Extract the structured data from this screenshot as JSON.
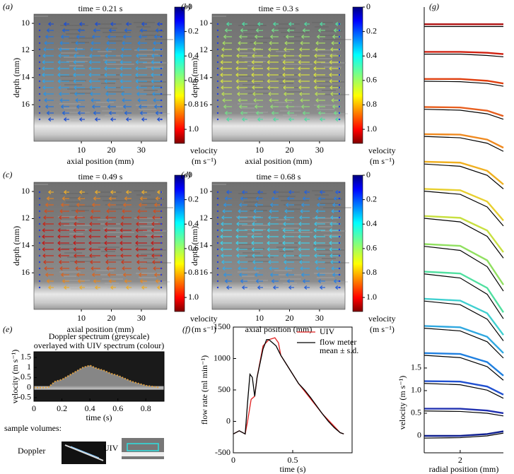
{
  "figure": {
    "vector_panels": [
      {
        "label": "(a)",
        "title": "time = 0.21 s",
        "arrow_colors": [
          "#1840d0",
          "#30a8e8"
        ]
      },
      {
        "label": "(b)",
        "title": "time = 0.3 s",
        "arrow_colors": [
          "#40d8b0",
          "#d8e040"
        ]
      },
      {
        "label": "(c)",
        "title": "time = 0.49 s",
        "arrow_colors": [
          "#f0c030",
          "#c01818"
        ]
      },
      {
        "label": "(d)",
        "title": "time = 0.68 s",
        "arrow_colors": [
          "#2050d8",
          "#40d0e8"
        ]
      }
    ],
    "vector_axes": {
      "xlabel": "axial position (mm)",
      "ylabel": "depth (mm)",
      "xlim": [
        -5.8,
        38.5
      ],
      "ylim": [
        9.32,
        18.7
      ],
      "xticks": [
        10,
        20,
        30
      ],
      "yticks": [
        10,
        12,
        14,
        16
      ],
      "colorbar": {
        "label": "velocity",
        "unit": "(m s⁻¹)",
        "clim": [
          0,
          1.115
        ],
        "ticks": [
          0,
          0.2,
          0.4,
          0.6,
          0.8,
          {
            "value": 1,
            "label": "1.0"
          }
        ]
      }
    },
    "panel_e": {
      "label": "(e)",
      "title_lines": [
        "Doppler spectrum (greyscale)",
        "overlayed with UIV spectrum (colour)"
      ],
      "xlabel": "time (s)",
      "ylabel": "velocity (m s⁻¹)",
      "xlim": [
        0,
        0.93
      ],
      "ylim": [
        -0.68,
        1.78
      ],
      "xticks": [
        0,
        0.2,
        0.4,
        0.6,
        0.8
      ],
      "yticks": [
        -0.5,
        0,
        0.5,
        1,
        1.5
      ],
      "x": [
        0,
        0.1,
        0.15,
        0.2,
        0.25,
        0.3,
        0.35,
        0.4,
        0.45,
        0.5,
        0.55,
        0.6,
        0.65,
        0.7,
        0.75,
        0.8,
        0.85,
        0.9
      ],
      "values": [
        0,
        0,
        0.3,
        0.4,
        0.6,
        0.8,
        1.0,
        1.1,
        0.95,
        0.85,
        0.7,
        0.6,
        0.45,
        0.3,
        0.2,
        0.1,
        0.05,
        0
      ],
      "color": "#e0a040",
      "sample_title": "sample volumes:",
      "doppler_label": "Doppler",
      "uiv_label": "UIV"
    },
    "panel_f": {
      "label": "(f)",
      "xlabel": "time (s)",
      "ylabel": "flow rate (ml min⁻¹)",
      "xlim": [
        0,
        1
      ],
      "ylim": [
        -500,
        1500
      ],
      "xticks": [
        0,
        0.5
      ],
      "yticks": [
        -500,
        0,
        500,
        1000,
        1500
      ],
      "series": [
        {
          "name": "UIV",
          "color": "#e02020",
          "x": [
            0,
            0.05,
            0.1,
            0.12,
            0.15,
            0.18,
            0.2,
            0.25,
            0.3,
            0.35,
            0.38,
            0.4,
            0.45,
            0.5,
            0.55,
            0.6,
            0.65,
            0.7,
            0.75,
            0.8,
            0.85,
            0.9,
            0.93
          ],
          "values": [
            -200,
            -150,
            -200,
            0,
            350,
            400,
            700,
            1200,
            1300,
            1330,
            1250,
            1050,
            900,
            750,
            600,
            480,
            360,
            240,
            120,
            20,
            -80,
            -180,
            -200
          ]
        },
        {
          "name": "flow meter",
          "note": "mean ± s.d.",
          "color": "#000000",
          "x": [
            0,
            0.05,
            0.1,
            0.12,
            0.14,
            0.16,
            0.18,
            0.2,
            0.25,
            0.28,
            0.3,
            0.33,
            0.36,
            0.4,
            0.45,
            0.5,
            0.55,
            0.6,
            0.65,
            0.7,
            0.75,
            0.8,
            0.85,
            0.9,
            0.93
          ],
          "values": [
            -200,
            -150,
            -200,
            300,
            750,
            700,
            400,
            700,
            1150,
            1300,
            1300,
            1250,
            1200,
            1050,
            900,
            750,
            600,
            500,
            380,
            250,
            120,
            0,
            -100,
            -180,
            -200
          ]
        }
      ]
    },
    "panel_g": {
      "label": "(g)",
      "xlabel": "radial position (mm)",
      "ylabel": "velocity (m s⁻¹)",
      "xlim": [
        0,
        4.4
      ],
      "ylim": [
        -0.375,
        9.48
      ],
      "xticks": [
        2
      ],
      "yticks": [
        0,
        0.5,
        {
          "value": 1,
          "label": "1.0"
        },
        1.5
      ],
      "radial": [
        0,
        2,
        3.5,
        4.4
      ],
      "reference_color": "#000000",
      "profiles": [
        {
          "color": "#b01010",
          "uiv": [
            9.1,
            9.1,
            9.1,
            9.1
          ],
          "reference": [
            9.05,
            9.05,
            9.05,
            9.05
          ]
        },
        {
          "color": "#d02010",
          "uiv": [
            8.49,
            8.49,
            8.47,
            8.44
          ],
          "reference": [
            8.44,
            8.44,
            8.41,
            8.38
          ]
        },
        {
          "color": "#e04010",
          "uiv": [
            7.89,
            7.89,
            7.85,
            7.79
          ],
          "reference": [
            7.84,
            7.83,
            7.79,
            7.73
          ]
        },
        {
          "color": "#e86020",
          "uiv": [
            7.27,
            7.26,
            7.19,
            7.07
          ],
          "reference": [
            7.22,
            7.2,
            7.12,
            7.0
          ]
        },
        {
          "color": "#f08a20",
          "uiv": [
            6.67,
            6.66,
            6.55,
            6.37
          ],
          "reference": [
            6.62,
            6.59,
            6.47,
            6.29
          ]
        },
        {
          "color": "#f0b020",
          "uiv": [
            6.06,
            6.04,
            5.86,
            5.56
          ],
          "reference": [
            6.01,
            5.96,
            5.76,
            5.46
          ]
        },
        {
          "color": "#e8d030",
          "uiv": [
            5.46,
            5.43,
            5.18,
            4.76
          ],
          "reference": [
            5.41,
            5.34,
            5.06,
            4.64
          ]
        },
        {
          "color": "#c8e040",
          "uiv": [
            4.86,
            4.82,
            4.54,
            4.06
          ],
          "reference": [
            4.81,
            4.73,
            4.41,
            3.93
          ]
        },
        {
          "color": "#90e060",
          "uiv": [
            4.24,
            4.2,
            3.88,
            3.34
          ],
          "reference": [
            4.19,
            4.1,
            3.74,
            3.2
          ]
        },
        {
          "color": "#50e0a0",
          "uiv": [
            3.63,
            3.59,
            3.27,
            2.73
          ],
          "reference": [
            3.58,
            3.49,
            3.13,
            2.59
          ]
        },
        {
          "color": "#40d0d0",
          "uiv": [
            3.03,
            2.99,
            2.71,
            2.23
          ],
          "reference": [
            2.98,
            2.9,
            2.58,
            2.1
          ]
        },
        {
          "color": "#30a8e0",
          "uiv": [
            2.43,
            2.4,
            2.19,
            1.83
          ],
          "reference": [
            2.38,
            2.32,
            2.08,
            1.72
          ]
        },
        {
          "color": "#2080e0",
          "uiv": [
            1.83,
            1.81,
            1.63,
            1.33
          ],
          "reference": [
            1.78,
            1.73,
            1.53,
            1.23
          ]
        },
        {
          "color": "#2050d0",
          "uiv": [
            1.21,
            1.2,
            1.09,
            0.91
          ],
          "reference": [
            1.16,
            1.13,
            1.01,
            0.83
          ]
        },
        {
          "color": "#2030b0",
          "uiv": [
            0.6,
            0.6,
            0.56,
            0.5
          ],
          "reference": [
            0.55,
            0.54,
            0.5,
            0.44
          ]
        },
        {
          "color": "#102090",
          "uiv": [
            0,
            0,
            0.04,
            0.1
          ],
          "reference": [
            -0.05,
            -0.04,
            0,
            0.06
          ]
        }
      ]
    }
  }
}
